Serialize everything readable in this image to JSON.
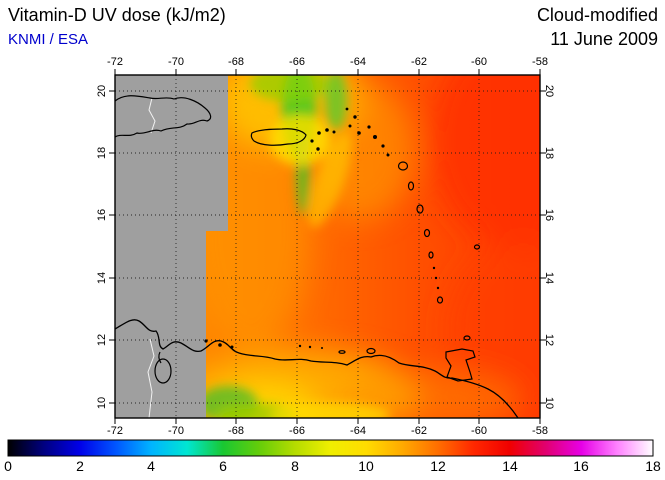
{
  "header": {
    "title": "Vitamin-D UV dose (kJ/m2)",
    "source": "KNMI / ESA",
    "mode": "Cloud-modified",
    "date": "11 June 2009"
  },
  "map": {
    "lon_ticks": [
      "-72",
      "-70",
      "-68",
      "-66",
      "-64",
      "-62",
      "-60",
      "-58"
    ],
    "lat_ticks": [
      "20",
      "18",
      "16",
      "14",
      "12",
      "10"
    ]
  },
  "colorbar": {
    "min": 0,
    "max": 18,
    "unit": "kJ/m2",
    "tick_labels": [
      "0",
      "2",
      "4",
      "6",
      "8",
      "10",
      "12",
      "14",
      "16",
      "18"
    ],
    "stops": [
      "#000000",
      "#000080",
      "#0000e8",
      "#0055ff",
      "#00b4ff",
      "#00e6d2",
      "#19c832",
      "#64cd0a",
      "#b4dc00",
      "#f0ee00",
      "#ffdc00",
      "#ffaa00",
      "#ff6e00",
      "#ff2800",
      "#f00000",
      "#e1006e",
      "#e600e6",
      "#ff82ff",
      "#ffffff"
    ]
  },
  "colors": {
    "source_text": "#0000CD",
    "no_data_gray": "#9f9f9f",
    "coastline": "#000000",
    "field_base_orange": "#ff7300"
  },
  "chart_data": {
    "type": "heatmap",
    "title": "Vitamin-D UV dose (kJ/m2)",
    "x_axis": {
      "tick_values": [
        -72,
        -70,
        -68,
        -66,
        -64,
        -62,
        -60,
        -58
      ]
    },
    "y_axis": {
      "tick_values": [
        20,
        18,
        16,
        14,
        12,
        10
      ]
    },
    "color_scale": {
      "min": 0,
      "max": 18,
      "unit": "kJ/m2"
    },
    "approx_values": [
      {
        "area": "open Atlantic east of -64",
        "value": 12.5
      },
      {
        "area": "central map around Puerto Rico",
        "value": 11
      },
      {
        "area": "cloud streaks near -66, lat 17-20",
        "value": 8
      },
      {
        "area": "south coastal band lat 10-11",
        "value": 10
      },
      {
        "area": "west of about -68.3 (gray)",
        "value": null,
        "note": "no data"
      }
    ]
  }
}
